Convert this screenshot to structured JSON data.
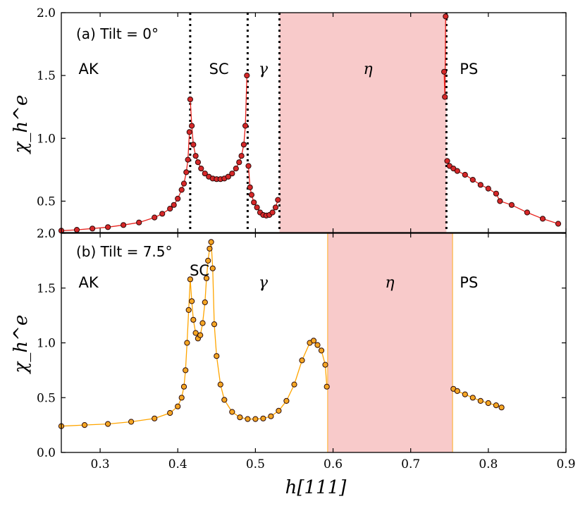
{
  "chart_data": [
    {
      "type": "scatter",
      "panel": "a",
      "title": "(a) Tilt = 0°",
      "ylabel": "χ_h^e",
      "xlim": [
        0.25,
        0.9
      ],
      "ylim": [
        0.25,
        2.0
      ],
      "ytick_labels": [
        "2.0",
        "1.5",
        "1.0",
        "0.5"
      ],
      "ytick_values": [
        2.0,
        1.5,
        1.0,
        0.5
      ],
      "colors": {
        "marker": "#d62728",
        "line": "#e8231e",
        "shade": "#f4a9aa"
      },
      "shaded_region": [
        0.531,
        0.746
      ],
      "boundaries": [
        0.416,
        0.49,
        0.531,
        0.746
      ],
      "regions": [
        {
          "label": "AK",
          "x": 0.285,
          "y": 1.55
        },
        {
          "label": "SC",
          "x": 0.453,
          "y": 1.55
        },
        {
          "label": "γ",
          "x": 0.51,
          "y": 1.55
        },
        {
          "label": "η",
          "x": 0.645,
          "y": 1.55
        },
        {
          "label": "PS",
          "x": 0.775,
          "y": 1.55
        }
      ],
      "series": [
        {
          "name": "branch-ak",
          "x": [
            0.25,
            0.27,
            0.29,
            0.31,
            0.33,
            0.35,
            0.37,
            0.38,
            0.39,
            0.395,
            0.4,
            0.405,
            0.408,
            0.411,
            0.413,
            0.415
          ],
          "y": [
            0.265,
            0.272,
            0.282,
            0.293,
            0.31,
            0.33,
            0.37,
            0.4,
            0.44,
            0.47,
            0.52,
            0.59,
            0.64,
            0.73,
            0.83,
            1.05
          ]
        },
        {
          "name": "branch-sc",
          "x": [
            0.416,
            0.418,
            0.42,
            0.423,
            0.426,
            0.43,
            0.435,
            0.44,
            0.445,
            0.45,
            0.455,
            0.46,
            0.465,
            0.47,
            0.475,
            0.479,
            0.482,
            0.485,
            0.487,
            0.489
          ],
          "y": [
            1.31,
            1.1,
            0.95,
            0.86,
            0.81,
            0.76,
            0.72,
            0.695,
            0.68,
            0.675,
            0.675,
            0.68,
            0.695,
            0.72,
            0.76,
            0.81,
            0.86,
            0.95,
            1.1,
            1.5
          ]
        },
        {
          "name": "branch-gamma",
          "x": [
            0.491,
            0.493,
            0.495,
            0.498,
            0.502,
            0.506,
            0.51,
            0.514,
            0.518,
            0.522,
            0.526,
            0.529
          ],
          "y": [
            0.78,
            0.61,
            0.55,
            0.49,
            0.45,
            0.41,
            0.39,
            0.385,
            0.39,
            0.41,
            0.45,
            0.51
          ]
        },
        {
          "name": "branch-eta-edge",
          "x": [
            0.743,
            0.744,
            0.745
          ],
          "y": [
            1.53,
            1.33,
            1.97
          ]
        },
        {
          "name": "branch-ps",
          "x": [
            0.747,
            0.75,
            0.755,
            0.76,
            0.77,
            0.78,
            0.79,
            0.8,
            0.81,
            0.815,
            0.83,
            0.85,
            0.87,
            0.89
          ],
          "y": [
            0.82,
            0.78,
            0.76,
            0.74,
            0.71,
            0.67,
            0.63,
            0.6,
            0.56,
            0.5,
            0.47,
            0.41,
            0.36,
            0.32
          ]
        }
      ]
    },
    {
      "type": "scatter",
      "panel": "b",
      "title": "(b) Tilt = 7.5°",
      "ylabel": "χ_h^e",
      "xlabel": "h[111]",
      "xlim": [
        0.25,
        0.9
      ],
      "ylim": [
        0.0,
        2.0
      ],
      "xtick_labels": [
        "0.3",
        "0.4",
        "0.5",
        "0.6",
        "0.7",
        "0.8",
        "0.9"
      ],
      "xtick_values": [
        0.3,
        0.4,
        0.5,
        0.6,
        0.7,
        0.8,
        0.9
      ],
      "ytick_labels": [
        "2.0",
        "1.5",
        "1.0",
        "0.5",
        "0.0"
      ],
      "ytick_values": [
        2.0,
        1.5,
        1.0,
        0.5,
        0.0
      ],
      "colors": {
        "marker": "#f5a623",
        "line": "#ffa500",
        "shade": "#f4a9aa"
      },
      "shaded_region": [
        0.593,
        0.754
      ],
      "boundaries": [],
      "regions": [
        {
          "label": "AK",
          "x": 0.285,
          "y": 1.55
        },
        {
          "label": "SC",
          "x": 0.428,
          "y": 1.66
        },
        {
          "label": "γ",
          "x": 0.51,
          "y": 1.55
        },
        {
          "label": "η",
          "x": 0.673,
          "y": 1.55
        },
        {
          "label": "PS",
          "x": 0.775,
          "y": 1.55
        }
      ],
      "series": [
        {
          "name": "branch-left",
          "x": [
            0.25,
            0.28,
            0.31,
            0.34,
            0.37,
            0.39,
            0.4,
            0.405,
            0.408,
            0.41,
            0.412,
            0.414,
            0.416,
            0.418,
            0.42,
            0.423,
            0.426,
            0.429,
            0.432,
            0.435,
            0.437,
            0.439,
            0.441,
            0.443,
            0.445,
            0.447,
            0.45,
            0.455,
            0.46,
            0.47,
            0.48,
            0.49,
            0.5,
            0.51,
            0.52,
            0.53,
            0.54,
            0.55,
            0.56,
            0.57,
            0.575,
            0.58,
            0.585,
            0.59,
            0.592
          ],
          "y": [
            0.24,
            0.25,
            0.26,
            0.28,
            0.31,
            0.36,
            0.42,
            0.5,
            0.6,
            0.75,
            1.0,
            1.3,
            1.58,
            1.38,
            1.21,
            1.09,
            1.04,
            1.07,
            1.18,
            1.37,
            1.59,
            1.75,
            1.86,
            1.92,
            1.68,
            1.17,
            0.88,
            0.62,
            0.48,
            0.37,
            0.32,
            0.305,
            0.305,
            0.31,
            0.33,
            0.38,
            0.47,
            0.62,
            0.84,
            1.0,
            1.02,
            0.98,
            0.93,
            0.8,
            0.6
          ]
        },
        {
          "name": "branch-ps",
          "x": [
            0.755,
            0.76,
            0.77,
            0.78,
            0.79,
            0.8,
            0.81,
            0.817
          ],
          "y": [
            0.58,
            0.56,
            0.53,
            0.5,
            0.47,
            0.45,
            0.43,
            0.41
          ]
        }
      ]
    }
  ]
}
